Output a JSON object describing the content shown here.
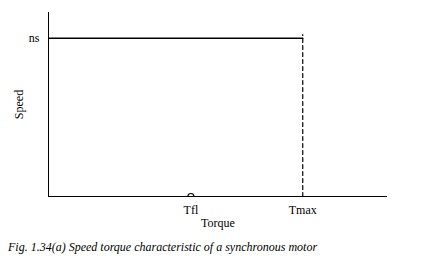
{
  "chart_data": {
    "type": "line",
    "caption": "Fig. 1.34(a) Speed torque characteristic of a synchronous motor",
    "x_label": "Torque",
    "y_label": "Speed",
    "x": [
      0,
      75
    ],
    "values": [
      86,
      86
    ],
    "color": "#000000",
    "xlim": [
      0,
      100
    ],
    "ylim": [
      0,
      100
    ],
    "xticks": [
      {
        "value": 42,
        "label": "Tfl"
      },
      {
        "value": 75,
        "label": "Tmax"
      }
    ],
    "yticks": [
      {
        "value": 86,
        "label": "ns"
      }
    ],
    "vline": {
      "x": 75,
      "y": [
        0,
        88
      ],
      "line_style": "dashed"
    },
    "point": {
      "x": 42,
      "y": 0,
      "marker": "circle"
    },
    "grid": false
  }
}
